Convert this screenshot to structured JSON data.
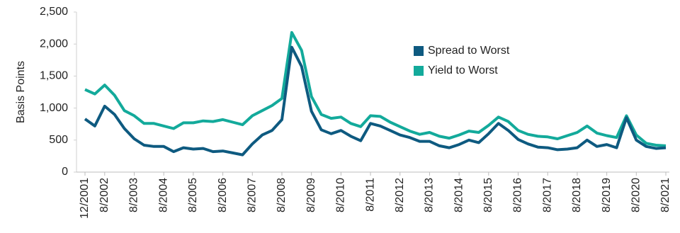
{
  "chart_data": {
    "type": "line",
    "y_label": "Basis Points",
    "categories": [
      "12/2001",
      null,
      "8/2002",
      null,
      null,
      "8/2003",
      null,
      null,
      "8/2004",
      null,
      null,
      "8/2005",
      null,
      null,
      "8/2006",
      null,
      null,
      "8/2007",
      null,
      null,
      "8/2008",
      null,
      null,
      "8/2009",
      null,
      null,
      "8/2010",
      null,
      null,
      "8/2011",
      null,
      null,
      "8/2012",
      null,
      null,
      "8/2013",
      null,
      null,
      "8/2014",
      null,
      null,
      "8/2015",
      null,
      null,
      "8/2016",
      null,
      null,
      "8/2017",
      null,
      null,
      "8/2018",
      null,
      null,
      "8/2019",
      null,
      null,
      "8/2020",
      null,
      null,
      "8/2021"
    ],
    "series": [
      {
        "name": "Spread to Worst",
        "color": "#0e5a80",
        "values": [
          830,
          720,
          1030,
          900,
          680,
          520,
          420,
          400,
          400,
          320,
          380,
          360,
          370,
          320,
          330,
          300,
          270,
          440,
          580,
          650,
          820,
          1950,
          1650,
          950,
          660,
          600,
          650,
          560,
          490,
          760,
          720,
          650,
          580,
          540,
          480,
          480,
          410,
          380,
          430,
          500,
          460,
          600,
          760,
          650,
          510,
          440,
          390,
          380,
          350,
          360,
          380,
          500,
          400,
          430,
          380,
          850,
          500,
          400,
          370,
          380
        ]
      },
      {
        "name": "Yield to Worst",
        "color": "#13aa9b",
        "values": [
          1290,
          1220,
          1360,
          1200,
          960,
          880,
          760,
          760,
          720,
          680,
          770,
          770,
          800,
          790,
          820,
          780,
          740,
          880,
          960,
          1040,
          1150,
          2180,
          1900,
          1180,
          900,
          840,
          860,
          760,
          710,
          880,
          870,
          780,
          710,
          640,
          590,
          620,
          560,
          530,
          580,
          640,
          620,
          730,
          860,
          790,
          650,
          590,
          560,
          550,
          520,
          570,
          620,
          720,
          610,
          570,
          540,
          880,
          580,
          450,
          420,
          410
        ]
      }
    ],
    "ylim": [
      0,
      2500
    ],
    "yticks": [
      0,
      500,
      {
        "value": 1000,
        "label": "1,000"
      },
      {
        "value": 1500,
        "label": "1,500"
      },
      {
        "value": 2000,
        "label": "2,000"
      },
      {
        "value": 2500,
        "label": "2,500"
      }
    ]
  }
}
